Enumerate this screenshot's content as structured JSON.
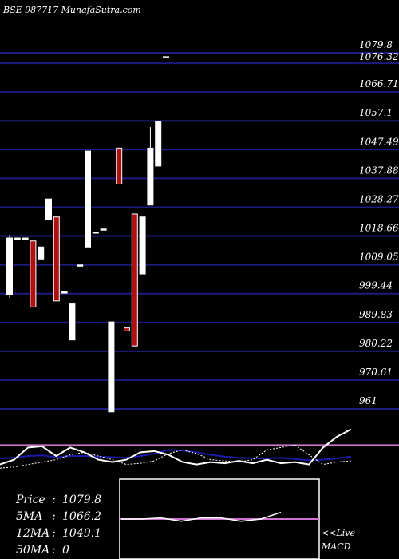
{
  "header": {
    "title": "BSE 987717 MunafaSutra.com"
  },
  "colors": {
    "background": "#000000",
    "gridline": "#1c1c80",
    "up_candle": "#ffffff",
    "down_candle": "#b01010",
    "candle_border": "#ffffff",
    "macd_line": "#ffffff",
    "macd_signal": "#1a1aa8",
    "pink_level": "#d070d0"
  },
  "chart_data": {
    "type": "candlestick",
    "price_axis": {
      "ticks": [
        "1079.8",
        "1076.32",
        "1066.71",
        "1057.1",
        "1047.49",
        "1037.88",
        "1028.27",
        "1018.66",
        "1009.05",
        "999.44",
        "989.83",
        "980.22",
        "970.61",
        "961"
      ],
      "ylim": [
        961,
        1079.8
      ]
    },
    "candles": [
      {
        "open": 999.0,
        "close": 1018.0,
        "high": 1019.0,
        "low": 998.0,
        "color": "white"
      },
      {
        "open": 1018.0,
        "close": 1018.0,
        "high": 1018.0,
        "low": 1018.0,
        "color": "white"
      },
      {
        "open": 1018.0,
        "close": 1018.0,
        "high": 1018.0,
        "low": 1018.0,
        "color": "white"
      },
      {
        "open": 1017.0,
        "close": 995.0,
        "high": 1017.0,
        "low": 995.0,
        "color": "red"
      },
      {
        "open": 1011.0,
        "close": 1015.0,
        "high": 1015.0,
        "low": 1011.0,
        "color": "white"
      },
      {
        "open": 1024.0,
        "close": 1031.0,
        "high": 1031.0,
        "low": 1024.0,
        "color": "white"
      },
      {
        "open": 1025.0,
        "close": 997.0,
        "high": 1025.0,
        "low": 997.0,
        "color": "red"
      },
      {
        "open": 1000.0,
        "close": 1000.0,
        "high": 1000.0,
        "low": 1000.0,
        "color": "white"
      },
      {
        "open": 984.0,
        "close": 996.0,
        "high": 996.0,
        "low": 984.0,
        "color": "white"
      },
      {
        "open": 1009.0,
        "close": 1009.0,
        "high": 1009.0,
        "low": 1009.0,
        "color": "white"
      },
      {
        "open": 1015.0,
        "close": 1047.0,
        "high": 1047.0,
        "low": 1015.0,
        "color": "white"
      },
      {
        "open": 1020.0,
        "close": 1020.0,
        "high": 1020.0,
        "low": 1020.0,
        "color": "white"
      },
      {
        "open": 1021.0,
        "close": 1021.0,
        "high": 1021.0,
        "low": 1021.0,
        "color": "white"
      },
      {
        "open": 960.0,
        "close": 990.0,
        "high": 990.0,
        "low": 960.0,
        "color": "white"
      },
      {
        "open": 1048.0,
        "close": 1036.0,
        "high": 1048.0,
        "low": 1036.0,
        "color": "red"
      },
      {
        "open": 988.0,
        "close": 987.0,
        "high": 988.0,
        "low": 987.0,
        "color": "red"
      },
      {
        "open": 1026.0,
        "close": 982.0,
        "high": 1026.0,
        "low": 982.0,
        "color": "red"
      },
      {
        "open": 1006.0,
        "close": 1025.0,
        "high": 1025.0,
        "low": 1006.0,
        "color": "white"
      },
      {
        "open": 1029.0,
        "close": 1048.0,
        "high": 1055.0,
        "low": 1029.0,
        "color": "white"
      },
      {
        "open": 1042.0,
        "close": 1057.0,
        "high": 1057.0,
        "low": 1042.0,
        "color": "white"
      },
      {
        "open": 1078.5,
        "close": 1078.5,
        "high": 1078.5,
        "low": 1078.5,
        "color": "white"
      }
    ],
    "macd": {
      "label": "MACD",
      "line": [
        -0.6,
        -0.2,
        0.8,
        0.9,
        0.1,
        0.8,
        0.4,
        -0.2,
        -0.4,
        -0.2,
        0.4,
        0.5,
        0.2,
        -0.4,
        -0.6,
        -0.4,
        -0.5,
        -0.3,
        -0.5,
        -0.2,
        -0.5,
        -0.4,
        -0.6,
        0.8,
        1.7,
        2.3
      ],
      "signal": [
        -0.1,
        -0.05,
        0.1,
        0.15,
        0.0,
        0.1,
        0.1,
        0.05,
        0.0,
        -0.05,
        0.1,
        0.3,
        0.6,
        0.55,
        0.4,
        0.2,
        0.05,
        -0.05,
        -0.1,
        -0.1,
        -0.05,
        -0.15,
        -0.25,
        -0.2,
        -0.1,
        0.05
      ],
      "dotted": [
        -0.9,
        -0.8,
        -0.6,
        -0.4,
        -0.2,
        0.2,
        0.4,
        0.1,
        -0.2,
        -0.6,
        -0.5,
        -0.3,
        0.3,
        0.6,
        0.3,
        -0.2,
        -0.3,
        -0.4,
        -0.2,
        0.6,
        0.8,
        1.0,
        0.2,
        -0.6,
        -0.4,
        -0.3
      ],
      "ylim": [
        -2.6,
        2.8
      ],
      "zero_line": 1.0
    },
    "summary_panel": {
      "price_label": "Price",
      "price_value": "1079.8",
      "ma5_label": "5MA",
      "ma5_value": "1066.2",
      "ma12_label": "12MA",
      "ma12_value": "1049.1",
      "ma50_label": "50MA",
      "ma50_value": "0"
    },
    "live_label": "<<Live",
    "mini_line": [
      0.0,
      0.0,
      0.1,
      -0.2,
      0.1,
      0.1,
      -0.2,
      0.0,
      0.6
    ]
  }
}
